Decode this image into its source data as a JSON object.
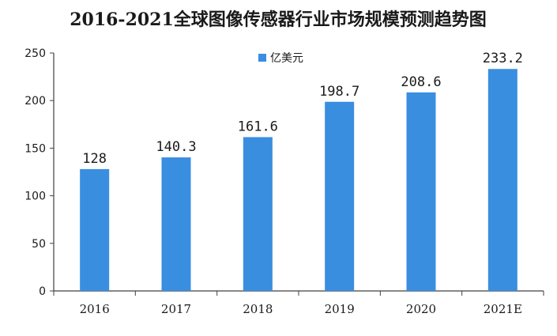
{
  "chart_data": {
    "type": "bar",
    "title": "2016-2021全球图像传感器行业市场规模预测趋势图",
    "categories": [
      "2016",
      "2017",
      "2018",
      "2019",
      "2020",
      "2021E"
    ],
    "series": [
      {
        "name": "亿美元",
        "values": [
          128,
          140.3,
          161.6,
          198.7,
          208.6,
          233.2
        ]
      }
    ],
    "data_labels": [
      "128",
      "140.3",
      "161.6",
      "198.7",
      "208.6",
      "233.2"
    ],
    "ylim": [
      0,
      250
    ],
    "yticks": [
      "0",
      "50",
      "100",
      "150",
      "200",
      "250"
    ],
    "grid": false,
    "legend_position": "top-center",
    "colors": {
      "bar": "#3a8ee0",
      "axis": "#404040",
      "text": "#1a1a1a"
    }
  }
}
